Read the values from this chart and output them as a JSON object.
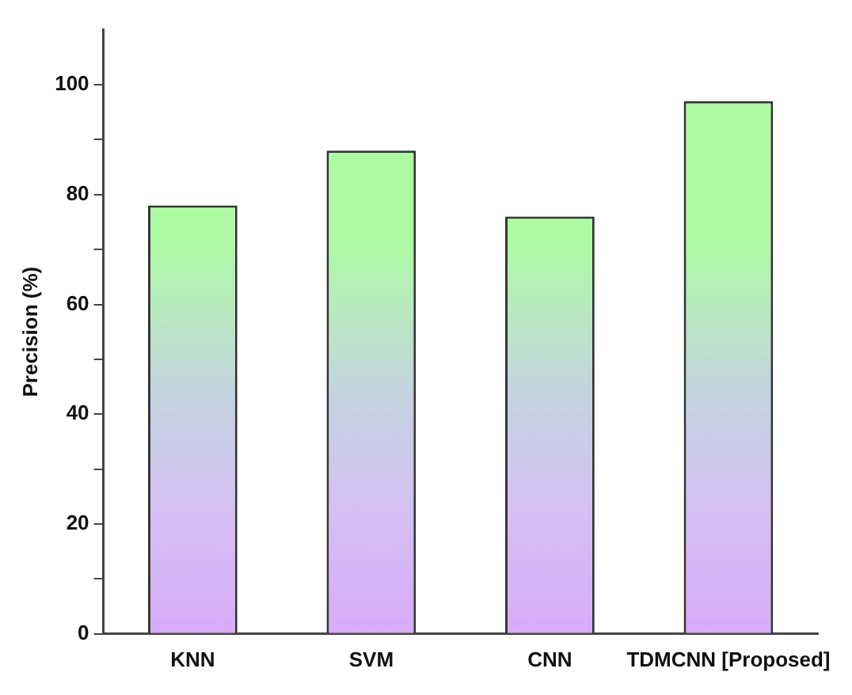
{
  "chart_data": {
    "type": "bar",
    "ylabel": "Precision (%)",
    "categories": [
      "KNN",
      "SVM",
      "CNN",
      "TDMCNN [Proposed]"
    ],
    "values": [
      78,
      88,
      76,
      97
    ],
    "color": "#aefba4",
    "ylim": [
      0,
      110
    ],
    "yticks": [
      0,
      {
        "value": 10,
        "label": null
      },
      20,
      {
        "value": 30,
        "label": null
      },
      40,
      {
        "value": 50,
        "label": null
      },
      60,
      {
        "value": 70,
        "label": null
      },
      80,
      {
        "value": 90,
        "label": null
      },
      100
    ],
    "grid": false,
    "legend": false
  }
}
